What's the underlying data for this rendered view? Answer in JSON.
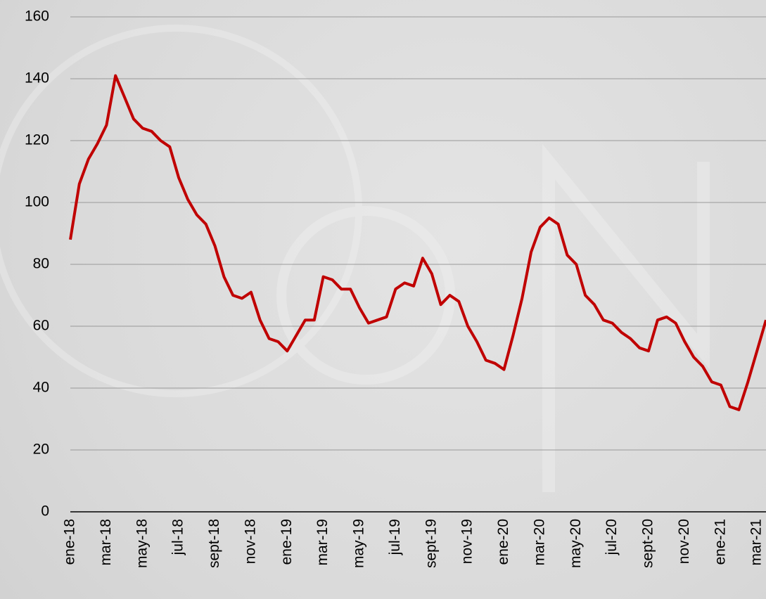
{
  "chart_data": {
    "type": "line",
    "categories": [
      "ene-18",
      null,
      null,
      null,
      "mar-18",
      null,
      null,
      null,
      "may-18",
      null,
      null,
      null,
      "jul-18",
      null,
      null,
      null,
      "sept-18",
      null,
      null,
      null,
      "nov-18",
      null,
      null,
      null,
      "ene-19",
      null,
      null,
      null,
      "mar-19",
      null,
      null,
      null,
      "may-19",
      null,
      null,
      null,
      "jul-19",
      null,
      null,
      null,
      "sept-19",
      null,
      null,
      null,
      "nov-19",
      null,
      null,
      null,
      "ene-20",
      null,
      null,
      null,
      "mar-20",
      null,
      null,
      null,
      "may-20",
      null,
      null,
      null,
      "jul-20",
      null,
      null,
      null,
      "sept-20",
      null,
      null,
      null,
      "nov-20",
      null,
      null,
      null,
      "ene-21",
      null,
      null,
      null,
      "mar-21",
      null
    ],
    "values": [
      88,
      106,
      114,
      119,
      125,
      141,
      134,
      127,
      124,
      123,
      120,
      118,
      108,
      101,
      96,
      93,
      86,
      76,
      70,
      69,
      71,
      62,
      56,
      55,
      52,
      57,
      62,
      62,
      76,
      75,
      72,
      72,
      66,
      61,
      62,
      63,
      72,
      74,
      73,
      82,
      77,
      67,
      70,
      68,
      60,
      55,
      49,
      48,
      46,
      57,
      69,
      84,
      92,
      95,
      93,
      83,
      80,
      70,
      67,
      62,
      61,
      58,
      56,
      53,
      52,
      62,
      63,
      61,
      55,
      50,
      47,
      42,
      41,
      34,
      33,
      42,
      52,
      62
    ],
    "color": "#c00000",
    "ylim": [
      0,
      160
    ],
    "yticks": [
      0,
      20,
      40,
      60,
      80,
      100,
      120,
      140,
      160
    ],
    "grid": true
  }
}
